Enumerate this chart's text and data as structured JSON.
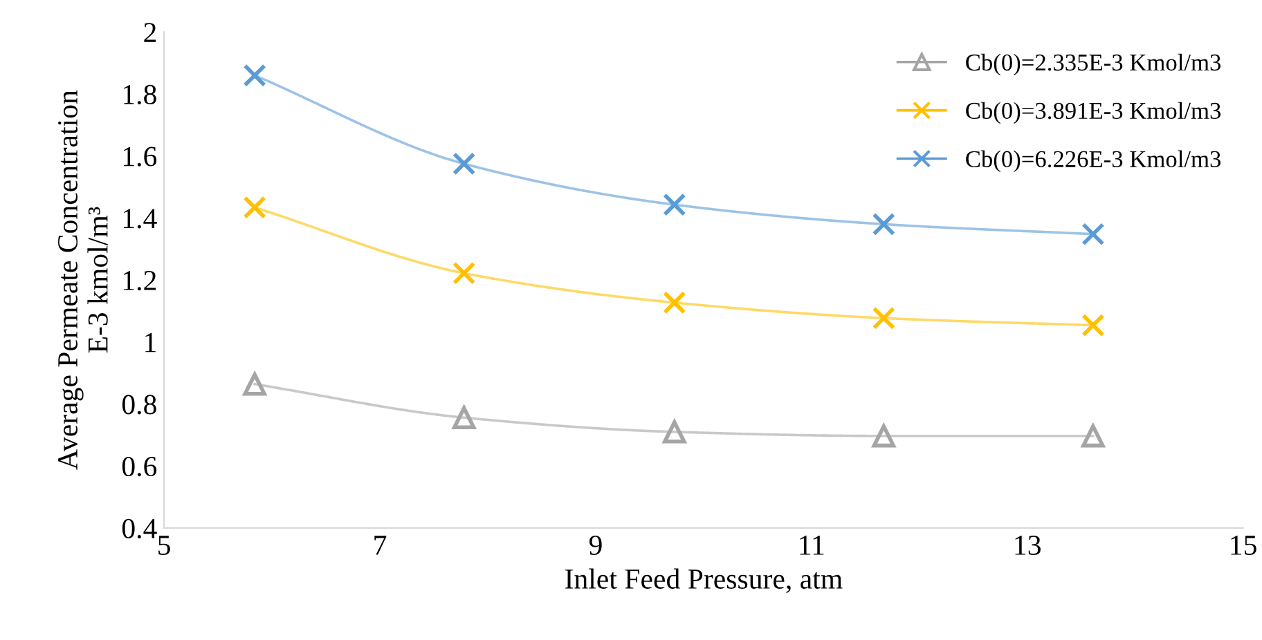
{
  "chart_data": {
    "type": "line",
    "xlabel": "Inlet Feed Pressure, atm",
    "ylabel": "Average Permeate Concentration\nE-3 kmol/m³",
    "x": [
      5.84,
      7.78,
      9.73,
      11.67,
      13.61
    ],
    "series": [
      {
        "name": "Cb(0)=2.335E-3 Kmol/m3",
        "color": "#a5a5a5",
        "marker": "triangle",
        "values": [
          0.864,
          0.756,
          0.71,
          0.697,
          0.697
        ]
      },
      {
        "name": "Cb(0)=3.891E-3 Kmol/m3",
        "color": "#ffc000",
        "marker": "cross",
        "values": [
          1.434,
          1.222,
          1.127,
          1.077,
          1.054
        ]
      },
      {
        "name": "Cb(0)=6.226E-3 Kmol/m3",
        "color": "#5b9bd5",
        "marker": "cross",
        "values": [
          1.86,
          1.575,
          1.443,
          1.38,
          1.348
        ]
      }
    ],
    "xlim": [
      5,
      15
    ],
    "xticks": [
      5,
      7,
      9,
      11,
      13,
      15
    ],
    "ylim": [
      0.4,
      2
    ],
    "yticks": [
      0.4,
      0.6,
      0.8,
      1,
      1.2,
      1.4,
      1.6,
      1.8,
      2
    ],
    "grid": false,
    "legend": "top right",
    "line_style": "solid"
  }
}
